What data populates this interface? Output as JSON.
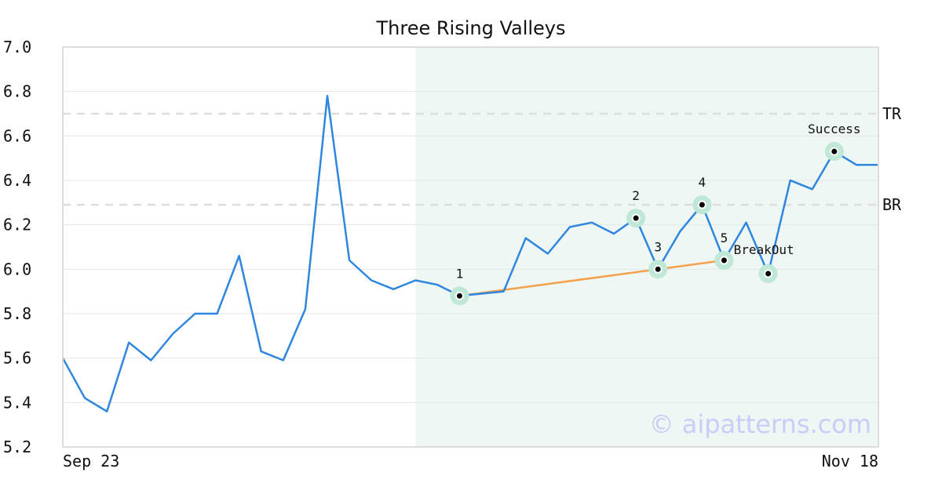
{
  "chart_data": {
    "type": "line",
    "title": "Three Rising Valleys",
    "ylim": [
      5.2,
      7.0
    ],
    "yticks": [
      "7.0",
      "6.8",
      "6.6",
      "6.4",
      "6.2",
      "6.0",
      "5.8",
      "5.6",
      "5.4",
      "5.2"
    ],
    "x_range_labels": [
      "Sep 23",
      "Nov 18"
    ],
    "grid": true,
    "series": [
      {
        "color": "#2e86de",
        "values": [
          5.6,
          5.42,
          5.36,
          5.67,
          5.59,
          5.71,
          5.8,
          5.8,
          6.06,
          5.63,
          5.59,
          5.82,
          6.78,
          6.04,
          5.95,
          5.91,
          5.95,
          5.93,
          5.88,
          5.89,
          5.9,
          6.14,
          6.07,
          6.19,
          6.21,
          6.16,
          6.23,
          6.0,
          6.17,
          6.29,
          6.04,
          6.21,
          5.98,
          6.4,
          6.36,
          6.53,
          6.47,
          6.47
        ]
      }
    ],
    "levels": [
      {
        "label": "TR",
        "value": 6.7
      },
      {
        "label": "BR",
        "value": 6.29
      }
    ],
    "pattern_region": {
      "start_index": 16,
      "end_index": 37,
      "color": "#eef7f3"
    },
    "support_line": {
      "from": {
        "index": 18,
        "value": 5.88
      },
      "to": {
        "index": 30,
        "value": 6.04
      },
      "color": "#f5a04a"
    },
    "points": [
      {
        "label": "1",
        "index": 18,
        "value": 5.88,
        "pos": "above"
      },
      {
        "label": "2",
        "index": 26,
        "value": 6.23,
        "pos": "above"
      },
      {
        "label": "3",
        "index": 27,
        "value": 6.0,
        "pos": "above"
      },
      {
        "label": "4",
        "index": 29,
        "value": 6.29,
        "pos": "above"
      },
      {
        "label": "5",
        "index": 30,
        "value": 6.04,
        "pos": "above"
      },
      {
        "label": "BreakOut",
        "index": 32,
        "value": 5.98,
        "pos": "above-left"
      },
      {
        "label": "Success",
        "index": 35,
        "value": 6.53,
        "pos": "above"
      }
    ],
    "watermark": "© aipatterns.com"
  }
}
